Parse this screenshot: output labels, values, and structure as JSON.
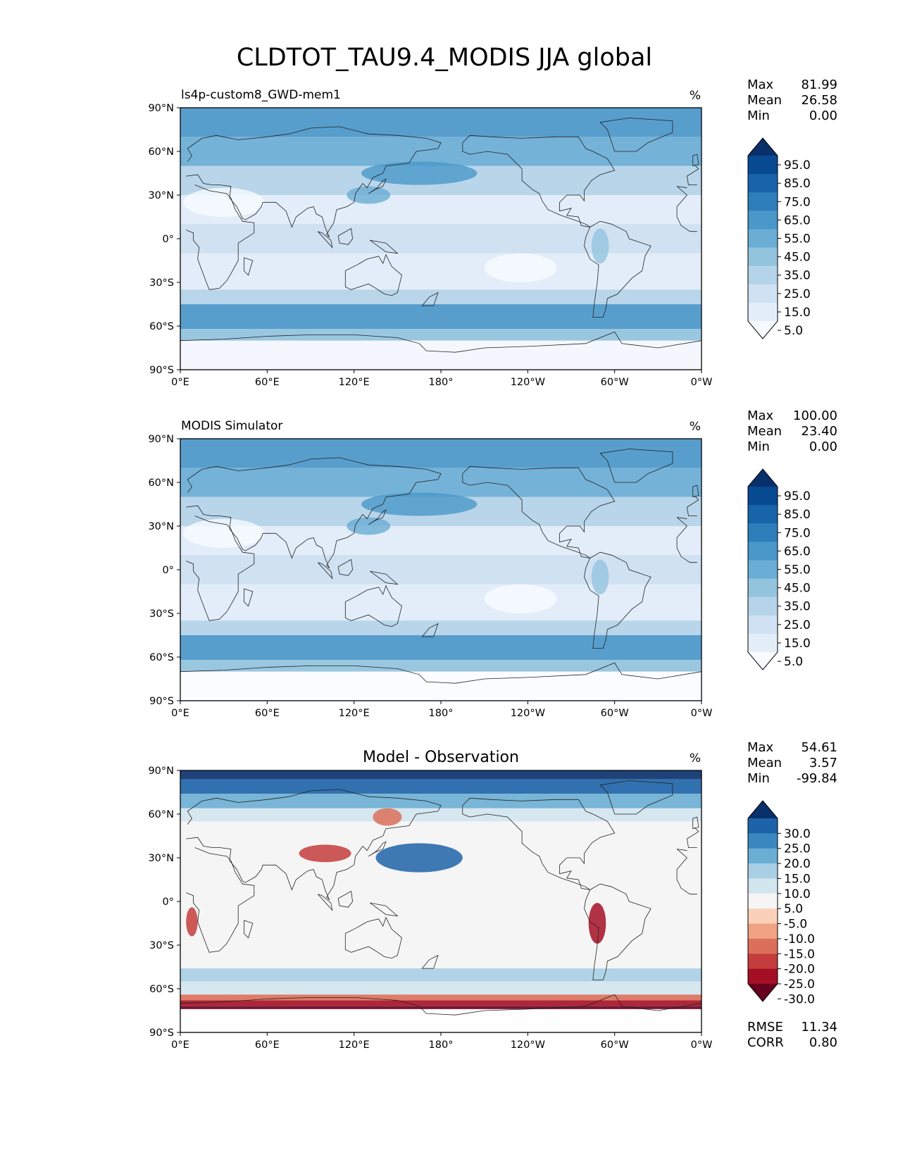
{
  "title": "CLDTOT_TAU9.4_MODIS JJA global",
  "chart_data": [
    {
      "type": "heatmap",
      "panel_title": "ls4p-custom8_GWD-mem1",
      "title_position": "left",
      "units": "%",
      "stats": [
        {
          "label": "Max",
          "value": "81.99"
        },
        {
          "label": "Mean",
          "value": "26.58"
        },
        {
          "label": "Min",
          "value": "0.00"
        }
      ],
      "colormap": "Blues",
      "colorbar_ticks": [
        "95.0",
        "85.0",
        "75.0",
        "65.0",
        "55.0",
        "45.0",
        "35.0",
        "25.0",
        "15.0",
        "5.0"
      ],
      "colorbar_colors": [
        "#f7fbff",
        "#e3eef9",
        "#cfe1f2",
        "#b5d4e9",
        "#93c4de",
        "#6aadd5",
        "#4a97c9",
        "#2e7ebc",
        "#1764ab",
        "#084a91",
        "#08306b"
      ],
      "y_ticks": [
        "90°N",
        "60°N",
        "30°N",
        "0°",
        "30°S",
        "60°S",
        "90°S"
      ],
      "x_ticks": [
        "0°E",
        "60°E",
        "120°E",
        "180°",
        "120°W",
        "60°W",
        "0°W"
      ],
      "extent": {
        "lon": [
          0,
          360
        ],
        "lat": [
          -90,
          90
        ]
      }
    },
    {
      "type": "heatmap",
      "panel_title": "MODIS Simulator",
      "title_position": "left",
      "units": "%",
      "stats": [
        {
          "label": "Max",
          "value": "100.00"
        },
        {
          "label": "Mean",
          "value": "23.40"
        },
        {
          "label": "Min",
          "value": "0.00"
        }
      ],
      "colormap": "Blues",
      "colorbar_ticks": [
        "95.0",
        "85.0",
        "75.0",
        "65.0",
        "55.0",
        "45.0",
        "35.0",
        "25.0",
        "15.0",
        "5.0"
      ],
      "colorbar_colors": [
        "#f7fbff",
        "#e3eef9",
        "#cfe1f2",
        "#b5d4e9",
        "#93c4de",
        "#6aadd5",
        "#4a97c9",
        "#2e7ebc",
        "#1764ab",
        "#084a91",
        "#08306b"
      ],
      "y_ticks": [
        "90°N",
        "60°N",
        "30°N",
        "0°",
        "30°S",
        "60°S",
        "90°S"
      ],
      "x_ticks": [
        "0°E",
        "60°E",
        "120°E",
        "180°",
        "120°W",
        "60°W",
        "0°W"
      ],
      "extent": {
        "lon": [
          0,
          360
        ],
        "lat": [
          -90,
          90
        ]
      }
    },
    {
      "type": "heatmap",
      "panel_title": "Model - Observation",
      "title_position": "center",
      "units": "%",
      "stats": [
        {
          "label": "Max",
          "value": "54.61"
        },
        {
          "label": "Mean",
          "value": "3.57"
        },
        {
          "label": "Min",
          "value": "-99.84"
        }
      ],
      "colormap": "RdBu",
      "colorbar_ticks": [
        "30.0",
        "25.0",
        "20.0",
        "15.0",
        "10.0",
        "5.0",
        "-5.0",
        "-10.0",
        "-15.0",
        "-20.0",
        "-25.0",
        "-30.0"
      ],
      "colorbar_colors": [
        "#67001f",
        "#a50f25",
        "#c43c3c",
        "#dc6f59",
        "#f0a283",
        "#fbd0b9",
        "#f5f5f5",
        "#d3e6f0",
        "#a9cfe5",
        "#6aaed4",
        "#3a87c0",
        "#1d63a8",
        "#08306b"
      ],
      "bottom_stats": [
        {
          "label": "RMSE",
          "value": "11.34"
        },
        {
          "label": "CORR",
          "value": "0.80"
        }
      ],
      "y_ticks": [
        "90°N",
        "60°N",
        "30°N",
        "0°",
        "30°S",
        "60°S",
        "90°S"
      ],
      "x_ticks": [
        "0°E",
        "60°E",
        "120°E",
        "180°",
        "120°W",
        "60°W",
        "0°W"
      ],
      "extent": {
        "lon": [
          0,
          360
        ],
        "lat": [
          -90,
          90
        ]
      }
    }
  ]
}
